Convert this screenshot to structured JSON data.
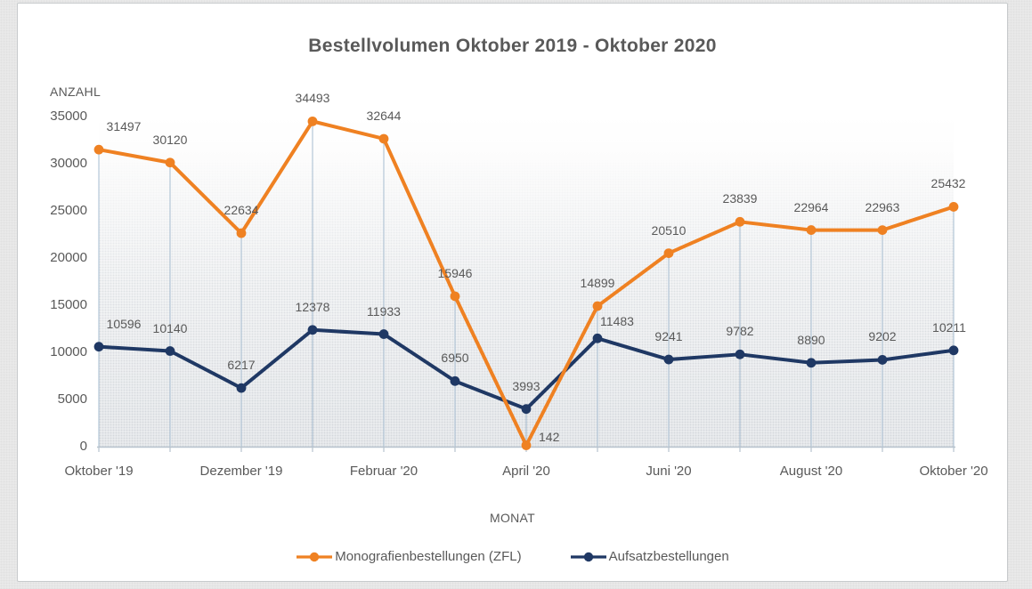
{
  "chart_data": {
    "type": "line",
    "title": "Bestellvolumen Oktober 2019 - Oktober 2020",
    "xlabel": "MONAT",
    "ylabel": "ANZAHL",
    "ylim": [
      0,
      35000
    ],
    "ytick_step": 5000,
    "yticks": [
      0,
      5000,
      10000,
      15000,
      20000,
      25000,
      30000,
      35000
    ],
    "num_points": 13,
    "x_label_indices": [
      0,
      2,
      4,
      6,
      8,
      10,
      12
    ],
    "x_labels": [
      "Oktober '19",
      "Dezember '19",
      "Februar '20",
      "April '20",
      "Juni '20",
      "August '20",
      "Oktober '20"
    ],
    "grid": "none",
    "drop_lines": true,
    "data_labels": true,
    "legend_position": "bottom",
    "series": [
      {
        "name": "Monografienbestellungen (ZFL)",
        "color": "#EF8122",
        "values": [
          31497,
          30120,
          22634,
          34493,
          32644,
          15946,
          142,
          14899,
          20510,
          23839,
          22964,
          22963,
          25432
        ]
      },
      {
        "name": "Aufsatzbestellungen",
        "color": "#1F3864",
        "values": [
          10596,
          10140,
          6217,
          12378,
          11933,
          6950,
          3993,
          11483,
          9241,
          9782,
          8890,
          9202,
          10211
        ]
      }
    ]
  },
  "colors": {
    "title_text": "#595959",
    "label_text": "#595959",
    "axis_line": "#B7C3CE",
    "drop_line": "#A6BCD0",
    "frame_border": "#C7CACC",
    "page_bg": "#EAEAEA",
    "plot_gradient_bottom": "#EDEFF1"
  }
}
